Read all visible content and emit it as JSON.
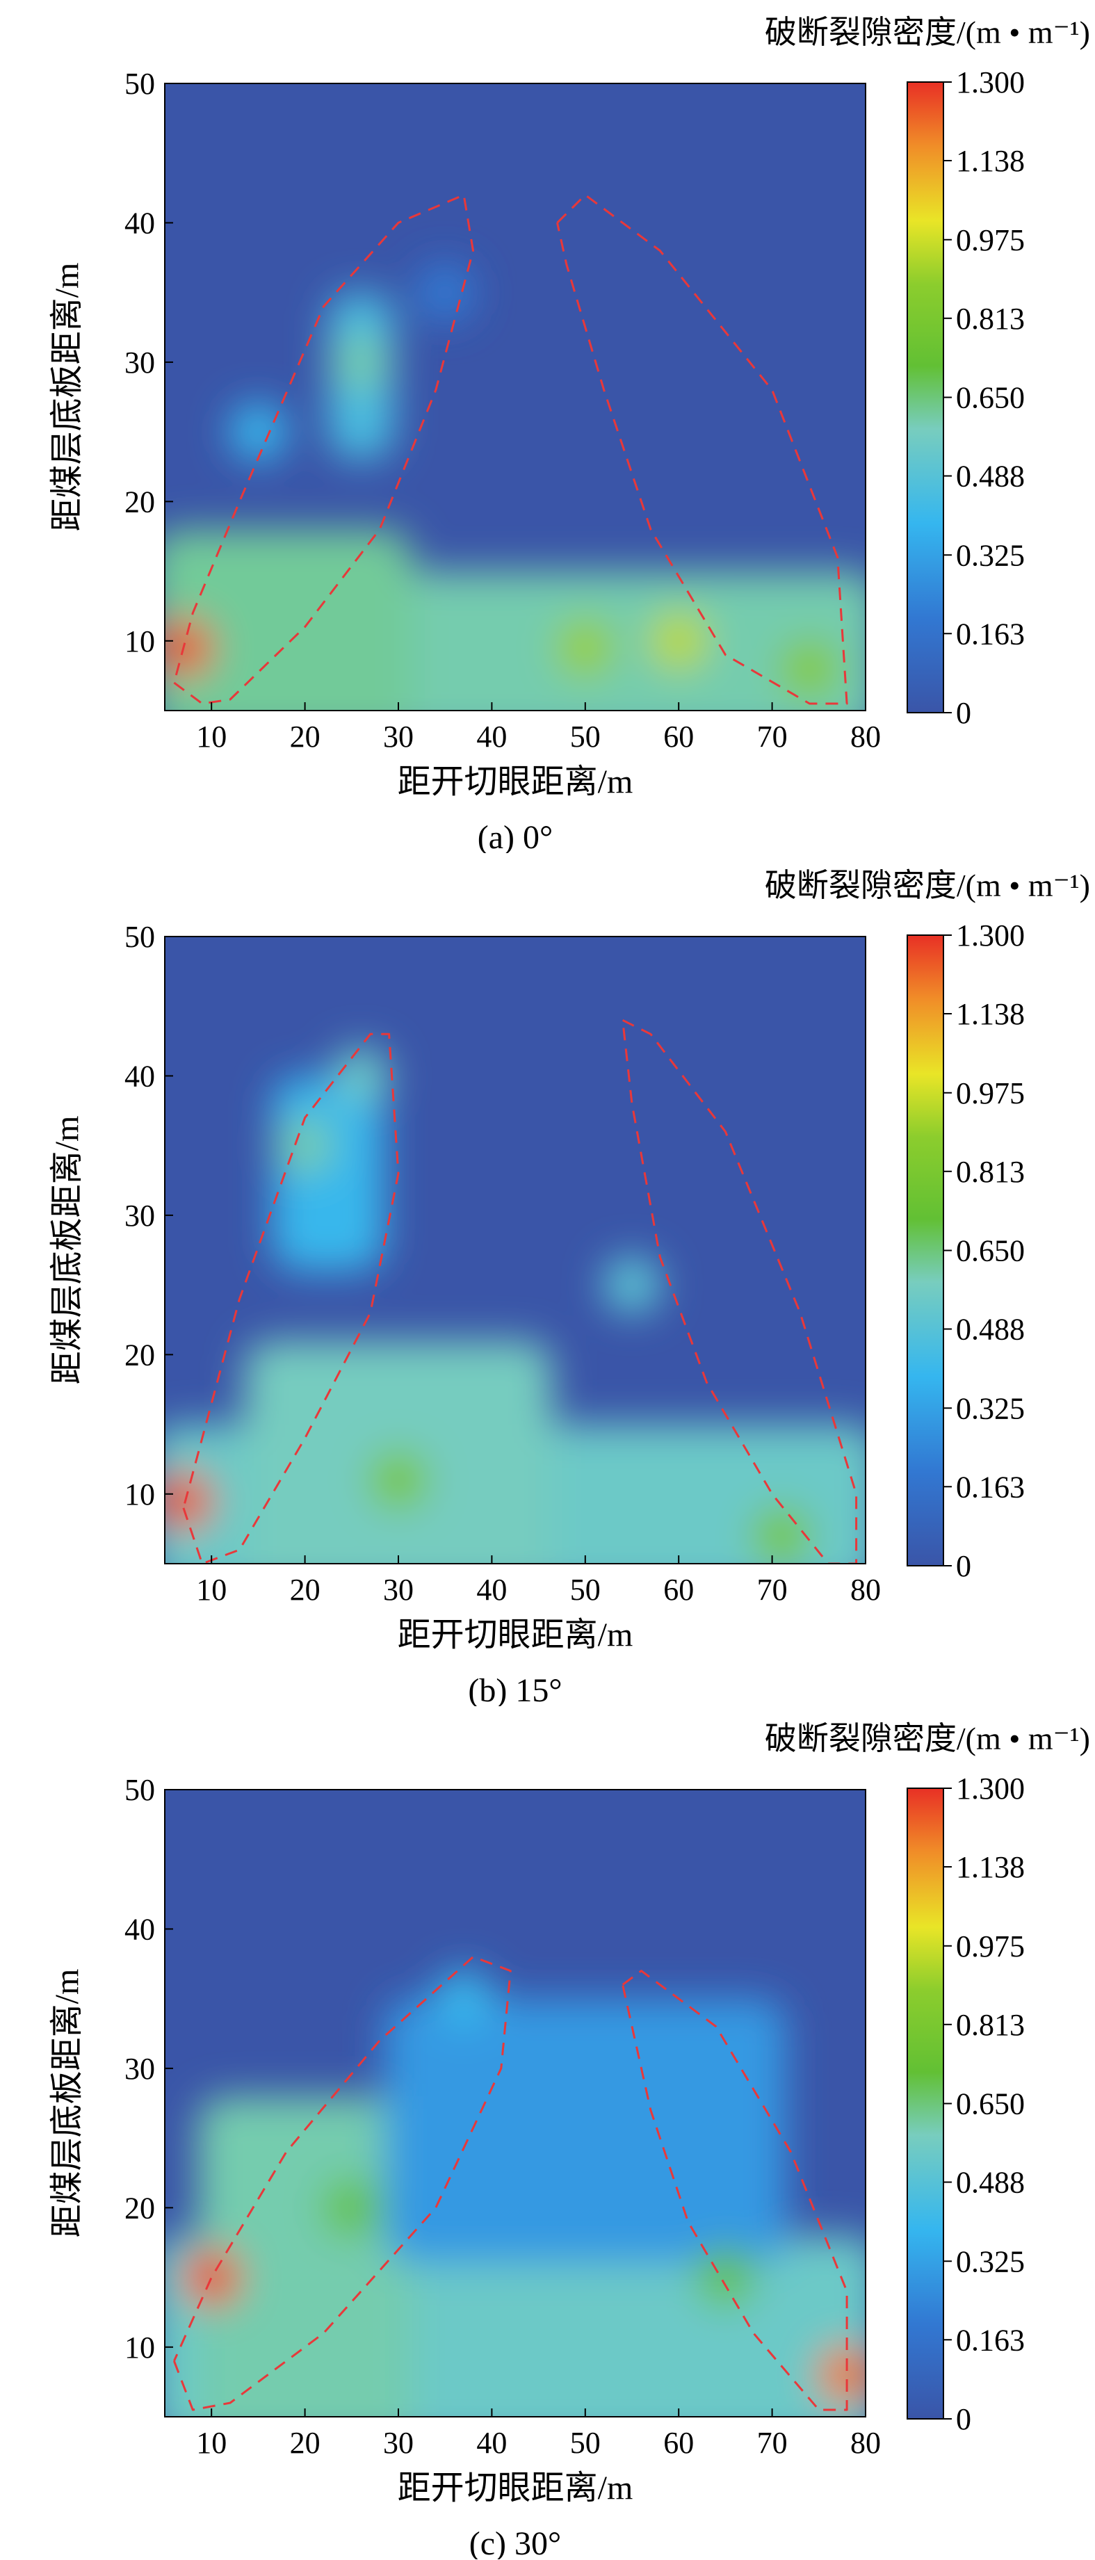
{
  "chart_data": [
    {
      "type": "heatmap",
      "caption": "(a) 0°",
      "xlabel": "距开切眼距离/m",
      "ylabel": "距煤层底板距离/m",
      "xlim": [
        5,
        80
      ],
      "ylim": [
        5,
        50
      ],
      "xticks": [
        10,
        20,
        30,
        40,
        50,
        60,
        70,
        80
      ],
      "yticks": [
        10,
        20,
        30,
        40,
        50
      ],
      "colorbar": {
        "title": "破断裂隙密度/(m • m⁻¹)",
        "ticks": [
          "1.300",
          "1.138",
          "0.975",
          "0.813",
          "0.650",
          "0.488",
          "0.325",
          "0.163",
          "0"
        ],
        "values": [
          1.3,
          1.138,
          0.975,
          0.813,
          0.65,
          0.488,
          0.325,
          0.163,
          0
        ]
      },
      "colors": {
        "low": "#3a55a8",
        "mid_low": "#35b6ef",
        "mid": "#62c034",
        "mid_high": "#e9e527",
        "high": "#e83025",
        "boundary": "#e8383a"
      },
      "zones": [
        {
          "x": [
            5,
            80
          ],
          "y": [
            5,
            15
          ],
          "value": 0.6
        },
        {
          "x": [
            5,
            30
          ],
          "y": [
            5,
            18
          ],
          "value": 0.62
        },
        {
          "x": [
            24,
            28
          ],
          "y": [
            25,
            35
          ],
          "value": 0.45
        }
      ],
      "hotspots": [
        {
          "x": 7,
          "y": 9.5,
          "value": 1.25
        },
        {
          "x": 26,
          "y": 30,
          "value": 0.6
        },
        {
          "x": 50,
          "y": 9.5,
          "value": 0.9
        },
        {
          "x": 60,
          "y": 10,
          "value": 0.95
        },
        {
          "x": 74,
          "y": 8,
          "value": 0.85
        },
        {
          "x": 15,
          "y": 25,
          "value": 0.4
        },
        {
          "x": 35,
          "y": 35,
          "value": 0.2
        }
      ],
      "boundary_left": [
        [
          6,
          7
        ],
        [
          9,
          5.5
        ],
        [
          12,
          5.8
        ],
        [
          20,
          11
        ],
        [
          28,
          18
        ],
        [
          34,
          28
        ],
        [
          38,
          38
        ],
        [
          37,
          42
        ],
        [
          30,
          40
        ],
        [
          22,
          34
        ],
        [
          13,
          20
        ],
        [
          8,
          12
        ],
        [
          6,
          7
        ]
      ],
      "boundary_right": [
        [
          47,
          40
        ],
        [
          50,
          42
        ],
        [
          58,
          38
        ],
        [
          70,
          28
        ],
        [
          77,
          16
        ],
        [
          78,
          5.5
        ],
        [
          74,
          5.5
        ],
        [
          65,
          9
        ],
        [
          57,
          18
        ],
        [
          52,
          28
        ],
        [
          48,
          37
        ],
        [
          47,
          40
        ]
      ]
    },
    {
      "type": "heatmap",
      "caption": "(b) 15°",
      "xlabel": "距开切眼距离/m",
      "ylabel": "距煤层底板距离/m",
      "xlim": [
        5,
        80
      ],
      "ylim": [
        5,
        50
      ],
      "xticks": [
        10,
        20,
        30,
        40,
        50,
        60,
        70,
        80
      ],
      "yticks": [
        10,
        20,
        30,
        40,
        50
      ],
      "colorbar": {
        "title": "破断裂隙密度/(m • m⁻¹)",
        "ticks": [
          "1.300",
          "1.138",
          "0.975",
          "0.813",
          "0.650",
          "0.488",
          "0.325",
          "0.163",
          "0"
        ],
        "values": [
          1.3,
          1.138,
          0.975,
          0.813,
          0.65,
          0.488,
          0.325,
          0.163,
          0
        ]
      },
      "colors": {
        "low": "#3a55a8",
        "mid_low": "#35b6ef",
        "mid": "#62c034",
        "mid_high": "#e9e527",
        "high": "#e83025",
        "boundary": "#e8383a"
      },
      "zones": [
        {
          "x": [
            5,
            80
          ],
          "y": [
            5,
            15
          ],
          "value": 0.55
        },
        {
          "x": [
            15,
            45
          ],
          "y": [
            5,
            21
          ],
          "value": 0.58
        },
        {
          "x": [
            18,
            27
          ],
          "y": [
            28,
            40
          ],
          "value": 0.4
        }
      ],
      "hotspots": [
        {
          "x": 7,
          "y": 9.5,
          "value": 1.25
        },
        {
          "x": 20,
          "y": 35,
          "value": 0.6
        },
        {
          "x": 26,
          "y": 40,
          "value": 0.55
        },
        {
          "x": 55,
          "y": 25,
          "value": 0.5
        },
        {
          "x": 30,
          "y": 11,
          "value": 0.8
        },
        {
          "x": 71,
          "y": 7,
          "value": 0.8
        }
      ],
      "boundary_left": [
        [
          7,
          9
        ],
        [
          9,
          5
        ],
        [
          13,
          6
        ],
        [
          20,
          14
        ],
        [
          27,
          23
        ],
        [
          30,
          33
        ],
        [
          29,
          43
        ],
        [
          27,
          43
        ],
        [
          20,
          37
        ],
        [
          13,
          24
        ],
        [
          9,
          14
        ],
        [
          7,
          9
        ]
      ],
      "boundary_right": [
        [
          54,
          44
        ],
        [
          57,
          43
        ],
        [
          65,
          36
        ],
        [
          73,
          23
        ],
        [
          79,
          10
        ],
        [
          79,
          5
        ],
        [
          76,
          5
        ],
        [
          70,
          10
        ],
        [
          63,
          18
        ],
        [
          58,
          27
        ],
        [
          55,
          38
        ],
        [
          54,
          44
        ]
      ]
    },
    {
      "type": "heatmap",
      "caption": "(c) 30°",
      "xlabel": "距开切眼距离/m",
      "ylabel": "距煤层底板距离/m",
      "xlim": [
        5,
        80
      ],
      "ylim": [
        5,
        50
      ],
      "xticks": [
        10,
        20,
        30,
        40,
        50,
        60,
        70,
        80
      ],
      "yticks": [
        10,
        20,
        30,
        40,
        50
      ],
      "colorbar": {
        "title": "破断裂隙密度/(m • m⁻¹)",
        "ticks": [
          "1.300",
          "1.138",
          "0.975",
          "0.813",
          "0.650",
          "0.488",
          "0.325",
          "0.163",
          "0"
        ],
        "values": [
          1.3,
          1.138,
          0.975,
          0.813,
          0.65,
          0.488,
          0.325,
          0.163,
          0
        ]
      },
      "colors": {
        "low": "#3a55a8",
        "mid_low": "#35b6ef",
        "mid": "#62c034",
        "mid_high": "#e9e527",
        "high": "#e83025",
        "boundary": "#e8383a"
      },
      "zones": [
        {
          "x": [
            5,
            80
          ],
          "y": [
            5,
            18
          ],
          "value": 0.55
        },
        {
          "x": [
            10,
            30
          ],
          "y": [
            5,
            28
          ],
          "value": 0.6
        },
        {
          "x": [
            30,
            70
          ],
          "y": [
            18,
            35
          ],
          "value": 0.3
        }
      ],
      "hotspots": [
        {
          "x": 10,
          "y": 15,
          "value": 1.25
        },
        {
          "x": 78,
          "y": 8,
          "value": 1.2
        },
        {
          "x": 25,
          "y": 20,
          "value": 0.7
        },
        {
          "x": 65,
          "y": 15,
          "value": 0.7
        },
        {
          "x": 37,
          "y": 35,
          "value": 0.4
        }
      ],
      "boundary_left": [
        [
          6,
          9
        ],
        [
          8,
          5.5
        ],
        [
          12,
          6
        ],
        [
          22,
          11
        ],
        [
          34,
          20
        ],
        [
          41,
          30
        ],
        [
          42,
          37
        ],
        [
          38,
          38
        ],
        [
          28,
          32
        ],
        [
          18,
          24
        ],
        [
          10,
          15
        ],
        [
          6,
          9
        ]
      ],
      "boundary_right": [
        [
          54,
          36
        ],
        [
          56,
          37
        ],
        [
          64,
          33
        ],
        [
          72,
          24
        ],
        [
          78,
          14
        ],
        [
          78,
          5.5
        ],
        [
          75,
          5.5
        ],
        [
          68,
          11
        ],
        [
          61,
          19
        ],
        [
          57,
          27
        ],
        [
          54,
          36
        ]
      ]
    }
  ]
}
